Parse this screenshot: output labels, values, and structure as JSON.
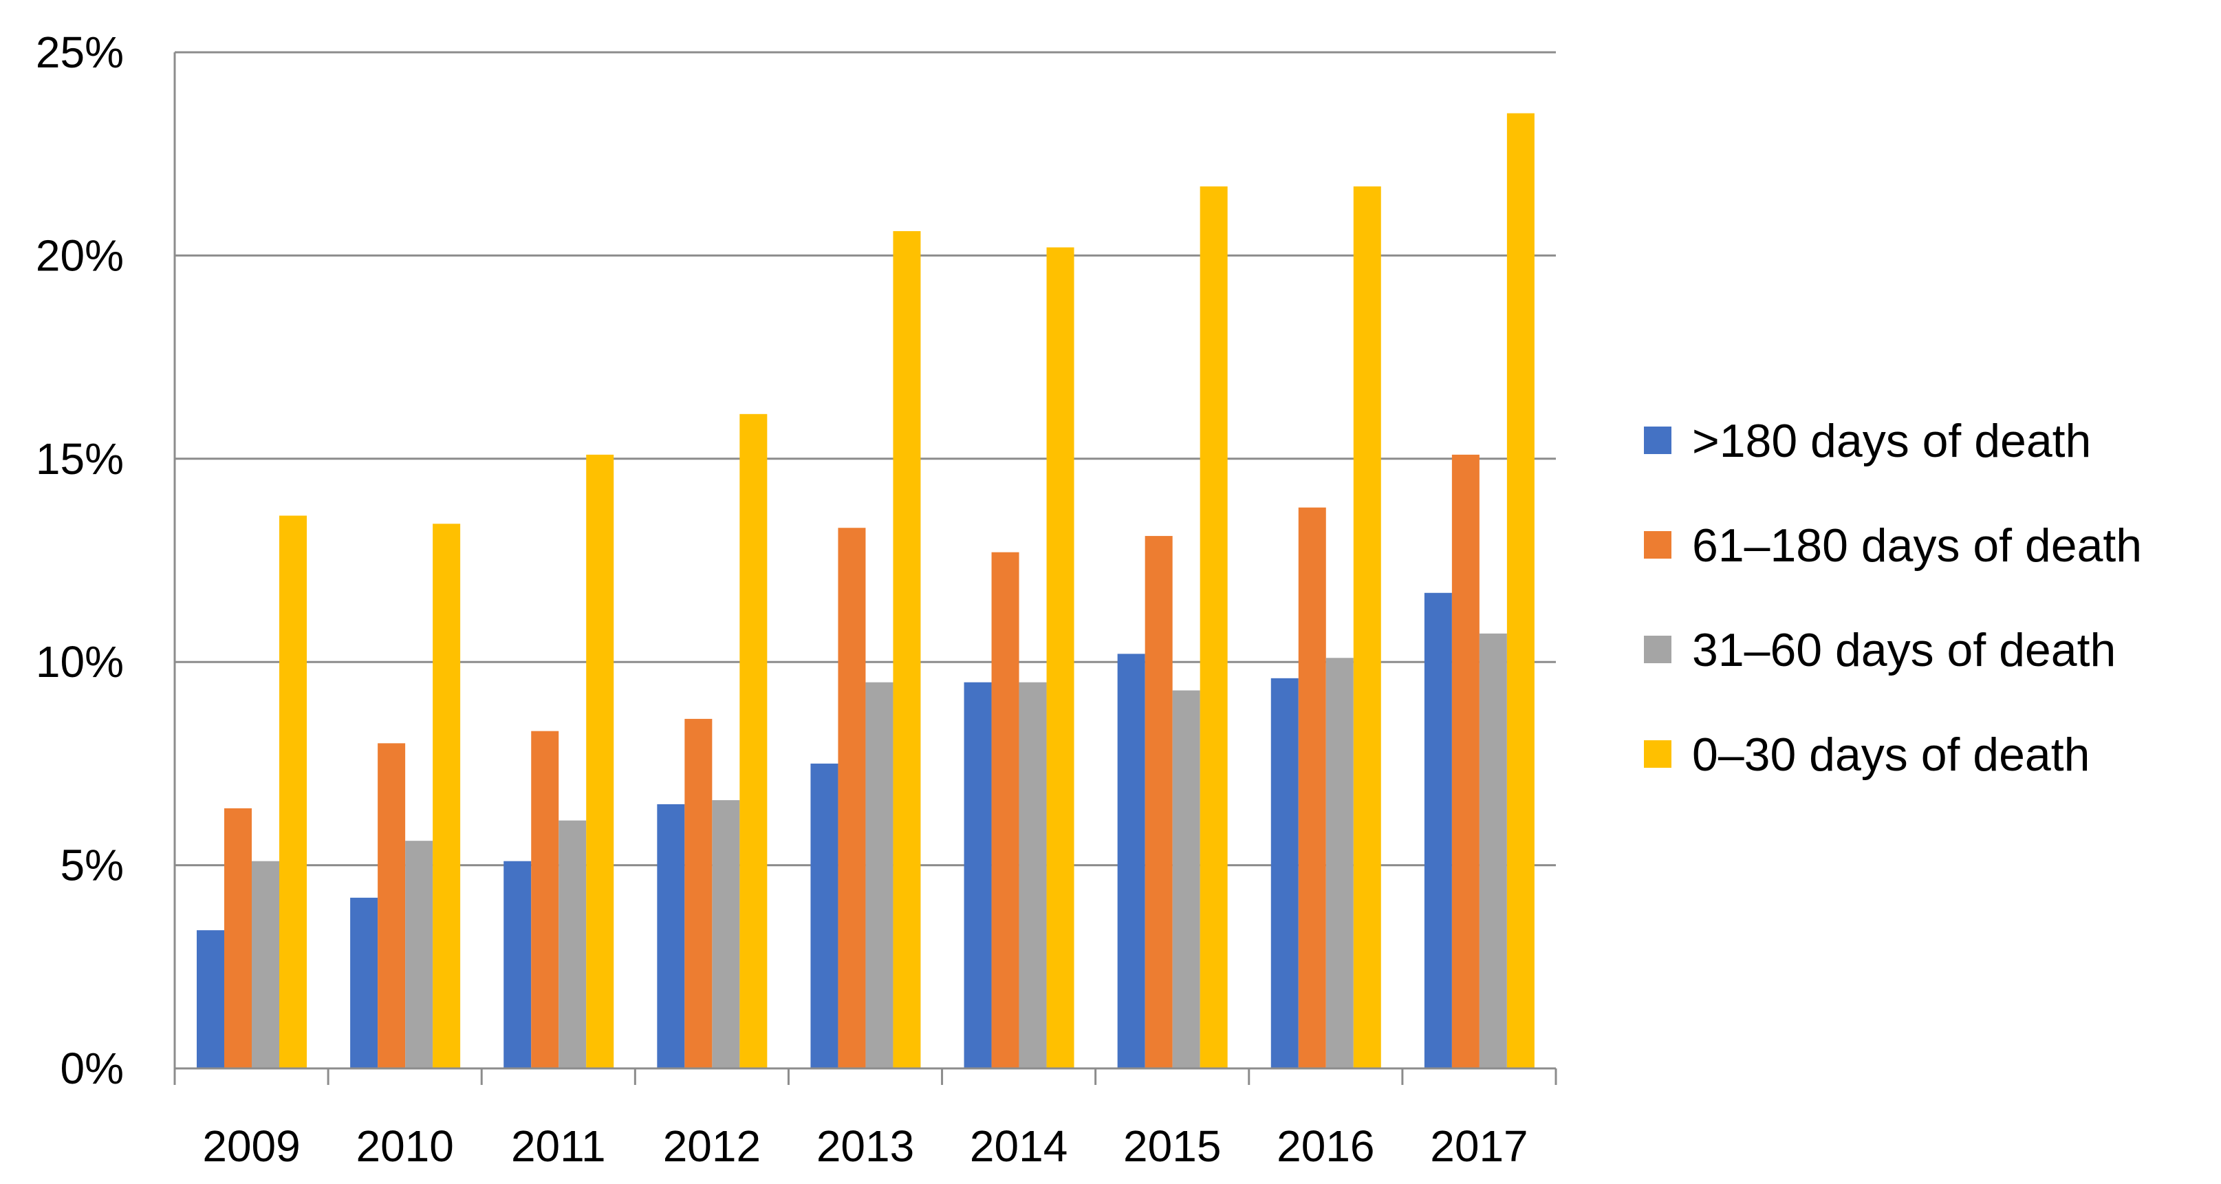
{
  "chart_data": {
    "type": "bar",
    "title": "",
    "xlabel": "",
    "ylabel": "",
    "categories": [
      "2009",
      "2010",
      "2011",
      "2012",
      "2013",
      "2014",
      "2015",
      "2016",
      "2017"
    ],
    "ylim": [
      0,
      25
    ],
    "yticks": [
      0,
      5,
      10,
      15,
      20,
      25
    ],
    "ytick_labels": [
      "0%",
      "5%",
      "10%",
      "15%",
      "20%",
      "25%"
    ],
    "grid": true,
    "legend_position": "right",
    "series": [
      {
        "name": ">180 days of death",
        "color": "#4472C4",
        "values": [
          3.4,
          4.2,
          5.1,
          6.5,
          7.5,
          9.5,
          10.2,
          9.6,
          11.7
        ]
      },
      {
        "name": "61–180 days of death",
        "color": "#ED7D31",
        "values": [
          6.4,
          8.0,
          8.3,
          8.6,
          13.3,
          12.7,
          13.1,
          13.8,
          15.1
        ]
      },
      {
        "name": "31–60 days of death",
        "color": "#A5A5A5",
        "values": [
          5.1,
          5.6,
          6.1,
          6.6,
          9.5,
          9.5,
          9.3,
          10.1,
          10.7
        ]
      },
      {
        "name": "0–30 days of death",
        "color": "#FFC000",
        "values": [
          13.6,
          13.4,
          15.1,
          16.1,
          20.6,
          20.2,
          21.7,
          21.7,
          23.5
        ]
      }
    ],
    "legend_order": [
      0,
      1,
      2,
      3
    ]
  }
}
